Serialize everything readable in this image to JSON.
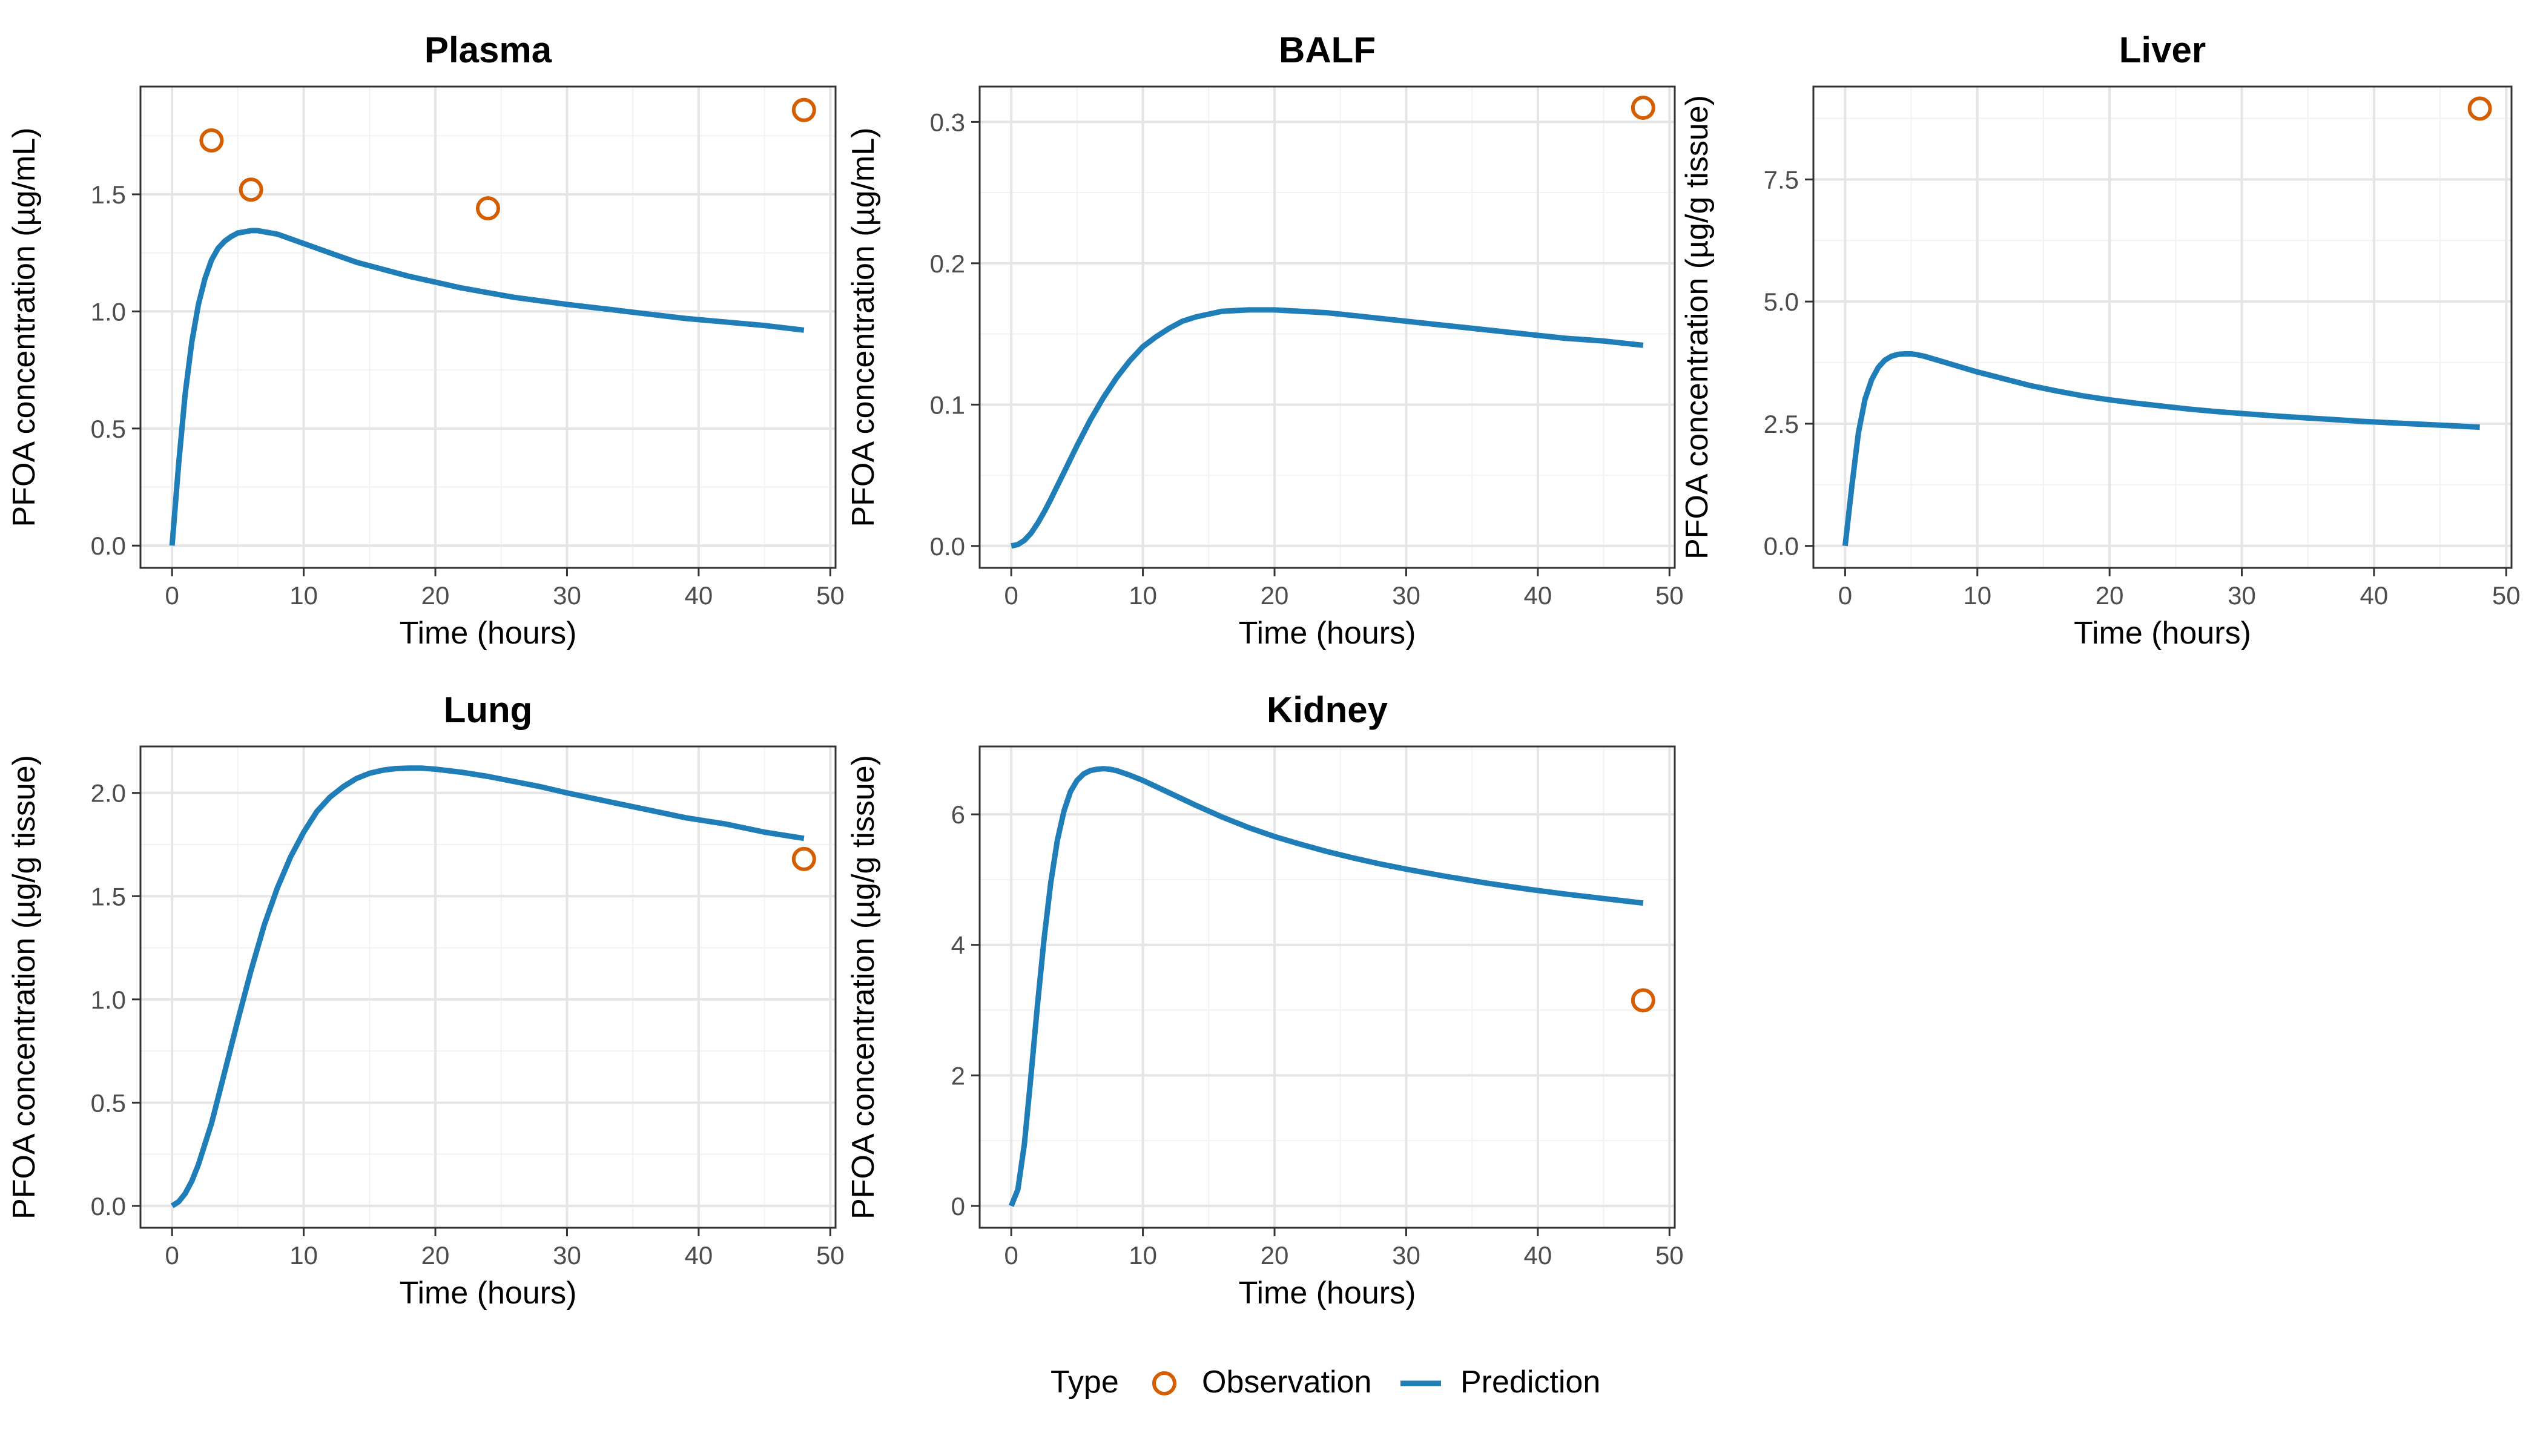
{
  "legend": {
    "title": "Type",
    "observation_label": "Observation",
    "prediction_label": "Prediction"
  },
  "colors": {
    "observation": "#D55E00",
    "prediction": "#1F7DB8",
    "grid": "#E5E5E5",
    "panel_border": "#333333",
    "tick_text": "#4D4D4D"
  },
  "chart_data": [
    {
      "type": "line",
      "title": "Plasma",
      "xlabel": "Time (hours)",
      "ylabel": "PFOA concentration (µg/mL)",
      "xlim": [
        -2.4,
        50.4
      ],
      "ylim": [
        -0.095,
        1.96
      ],
      "xticks": [
        0,
        10,
        20,
        30,
        40,
        50
      ],
      "yticks": [
        0.0,
        0.5,
        1.0,
        1.5
      ],
      "ytick_labels": [
        "0.0",
        "0.5",
        "1.0",
        "1.5"
      ],
      "grid": true,
      "series": [
        {
          "name": "Prediction",
          "kind": "line",
          "x": [
            0,
            0.5,
            1,
            1.5,
            2,
            2.5,
            3,
            3.5,
            4,
            4.5,
            5,
            5.5,
            6,
            6.5,
            7,
            8,
            9,
            10,
            12,
            14,
            16,
            18,
            20,
            22,
            24,
            26,
            28,
            30,
            33,
            36,
            39,
            42,
            45,
            48
          ],
          "y": [
            0.0,
            0.35,
            0.65,
            0.87,
            1.03,
            1.14,
            1.22,
            1.27,
            1.3,
            1.32,
            1.335,
            1.34,
            1.345,
            1.345,
            1.34,
            1.33,
            1.31,
            1.29,
            1.25,
            1.21,
            1.18,
            1.15,
            1.125,
            1.1,
            1.08,
            1.06,
            1.045,
            1.03,
            1.01,
            0.99,
            0.97,
            0.955,
            0.94,
            0.92
          ]
        },
        {
          "name": "Observation",
          "kind": "points",
          "x": [
            3,
            6,
            24,
            48
          ],
          "y": [
            1.73,
            1.52,
            1.44,
            1.86
          ]
        }
      ]
    },
    {
      "type": "line",
      "title": "BALF",
      "xlabel": "Time (hours)",
      "ylabel": "PFOA concentration (µg/mL)",
      "xlim": [
        -2.4,
        50.4
      ],
      "ylim": [
        -0.0155,
        0.325
      ],
      "xticks": [
        0,
        10,
        20,
        30,
        40,
        50
      ],
      "yticks": [
        0.0,
        0.1,
        0.2,
        0.3
      ],
      "ytick_labels": [
        "0.0",
        "0.1",
        "0.2",
        "0.3"
      ],
      "grid": true,
      "series": [
        {
          "name": "Prediction",
          "kind": "line",
          "x": [
            0,
            0.5,
            1,
            1.5,
            2,
            2.5,
            3,
            4,
            5,
            6,
            7,
            8,
            9,
            10,
            11,
            12,
            13,
            14,
            15,
            16,
            18,
            20,
            22,
            24,
            26,
            28,
            30,
            33,
            36,
            39,
            42,
            45,
            48
          ],
          "y": [
            0.0,
            0.001,
            0.004,
            0.009,
            0.016,
            0.024,
            0.033,
            0.052,
            0.071,
            0.089,
            0.105,
            0.119,
            0.131,
            0.141,
            0.148,
            0.154,
            0.159,
            0.162,
            0.164,
            0.166,
            0.167,
            0.167,
            0.166,
            0.165,
            0.163,
            0.161,
            0.159,
            0.156,
            0.153,
            0.15,
            0.147,
            0.145,
            0.142
          ]
        },
        {
          "name": "Observation",
          "kind": "points",
          "x": [
            48
          ],
          "y": [
            0.31
          ]
        }
      ]
    },
    {
      "type": "line",
      "title": "Liver",
      "xlabel": "Time (hours)",
      "ylabel": "PFOA concentration (µg/g tissue)",
      "xlim": [
        -2.4,
        50.4
      ],
      "ylim": [
        -0.45,
        9.4
      ],
      "xticks": [
        0,
        10,
        20,
        30,
        40,
        50
      ],
      "yticks": [
        0.0,
        2.5,
        5.0,
        7.5
      ],
      "ytick_labels": [
        "0.0",
        "2.5",
        "5.0",
        "7.5"
      ],
      "grid": true,
      "series": [
        {
          "name": "Prediction",
          "kind": "line",
          "x": [
            0,
            0.5,
            1,
            1.5,
            2,
            2.5,
            3,
            3.5,
            4,
            4.5,
            5,
            5.5,
            6,
            7,
            8,
            9,
            10,
            12,
            14,
            16,
            18,
            20,
            22,
            24,
            26,
            28,
            30,
            33,
            36,
            39,
            42,
            45,
            48
          ],
          "y": [
            0.0,
            1.2,
            2.3,
            3.0,
            3.4,
            3.65,
            3.8,
            3.88,
            3.92,
            3.93,
            3.93,
            3.91,
            3.88,
            3.8,
            3.72,
            3.64,
            3.56,
            3.42,
            3.28,
            3.17,
            3.07,
            2.99,
            2.92,
            2.86,
            2.8,
            2.75,
            2.71,
            2.65,
            2.6,
            2.55,
            2.51,
            2.47,
            2.43
          ]
        },
        {
          "name": "Observation",
          "kind": "points",
          "x": [
            48
          ],
          "y": [
            8.95
          ]
        }
      ]
    },
    {
      "type": "line",
      "title": "Lung",
      "xlabel": "Time (hours)",
      "ylabel": "PFOA concentration (µg/g tissue)",
      "xlim": [
        -2.4,
        50.4
      ],
      "ylim": [
        -0.106,
        2.225
      ],
      "xticks": [
        0,
        10,
        20,
        30,
        40,
        50
      ],
      "yticks": [
        0.0,
        0.5,
        1.0,
        1.5,
        2.0
      ],
      "ytick_labels": [
        "0.0",
        "0.5",
        "1.0",
        "1.5",
        "2.0"
      ],
      "grid": true,
      "series": [
        {
          "name": "Prediction",
          "kind": "line",
          "x": [
            0,
            0.5,
            1,
            1.5,
            2,
            2.5,
            3,
            4,
            5,
            6,
            7,
            8,
            9,
            10,
            11,
            12,
            13,
            14,
            15,
            16,
            17,
            18,
            19,
            20,
            22,
            24,
            26,
            28,
            30,
            33,
            36,
            39,
            42,
            45,
            48
          ],
          "y": [
            0.0,
            0.02,
            0.06,
            0.12,
            0.2,
            0.3,
            0.4,
            0.65,
            0.9,
            1.14,
            1.36,
            1.54,
            1.69,
            1.81,
            1.91,
            1.98,
            2.03,
            2.07,
            2.095,
            2.11,
            2.118,
            2.12,
            2.12,
            2.115,
            2.1,
            2.08,
            2.055,
            2.03,
            2.0,
            1.96,
            1.92,
            1.88,
            1.85,
            1.81,
            1.78
          ]
        },
        {
          "name": "Observation",
          "kind": "points",
          "x": [
            48
          ],
          "y": [
            1.68
          ]
        }
      ]
    },
    {
      "type": "line",
      "title": "Kidney",
      "xlabel": "Time (hours)",
      "ylabel": "PFOA concentration (µg/g tissue)",
      "xlim": [
        -2.4,
        50.4
      ],
      "ylim": [
        -0.335,
        7.04
      ],
      "xticks": [
        0,
        10,
        20,
        30,
        40,
        50
      ],
      "yticks": [
        0,
        2,
        4,
        6
      ],
      "ytick_labels": [
        "0",
        "2",
        "4",
        "6"
      ],
      "grid": true,
      "series": [
        {
          "name": "Prediction",
          "kind": "line",
          "x": [
            0,
            0.5,
            1,
            1.5,
            2,
            2.5,
            3,
            3.5,
            4,
            4.5,
            5,
            5.5,
            6,
            6.5,
            7,
            7.5,
            8,
            9,
            10,
            12,
            14,
            16,
            18,
            20,
            22,
            24,
            26,
            28,
            30,
            33,
            36,
            39,
            42,
            45,
            48
          ],
          "y": [
            0.0,
            0.25,
            0.95,
            2.0,
            3.1,
            4.1,
            4.95,
            5.6,
            6.05,
            6.35,
            6.52,
            6.62,
            6.67,
            6.69,
            6.7,
            6.69,
            6.67,
            6.6,
            6.52,
            6.33,
            6.14,
            5.96,
            5.8,
            5.66,
            5.54,
            5.43,
            5.33,
            5.24,
            5.16,
            5.05,
            4.95,
            4.86,
            4.78,
            4.71,
            4.64
          ]
        },
        {
          "name": "Observation",
          "kind": "points",
          "x": [
            48
          ],
          "y": [
            3.15
          ]
        }
      ]
    }
  ]
}
